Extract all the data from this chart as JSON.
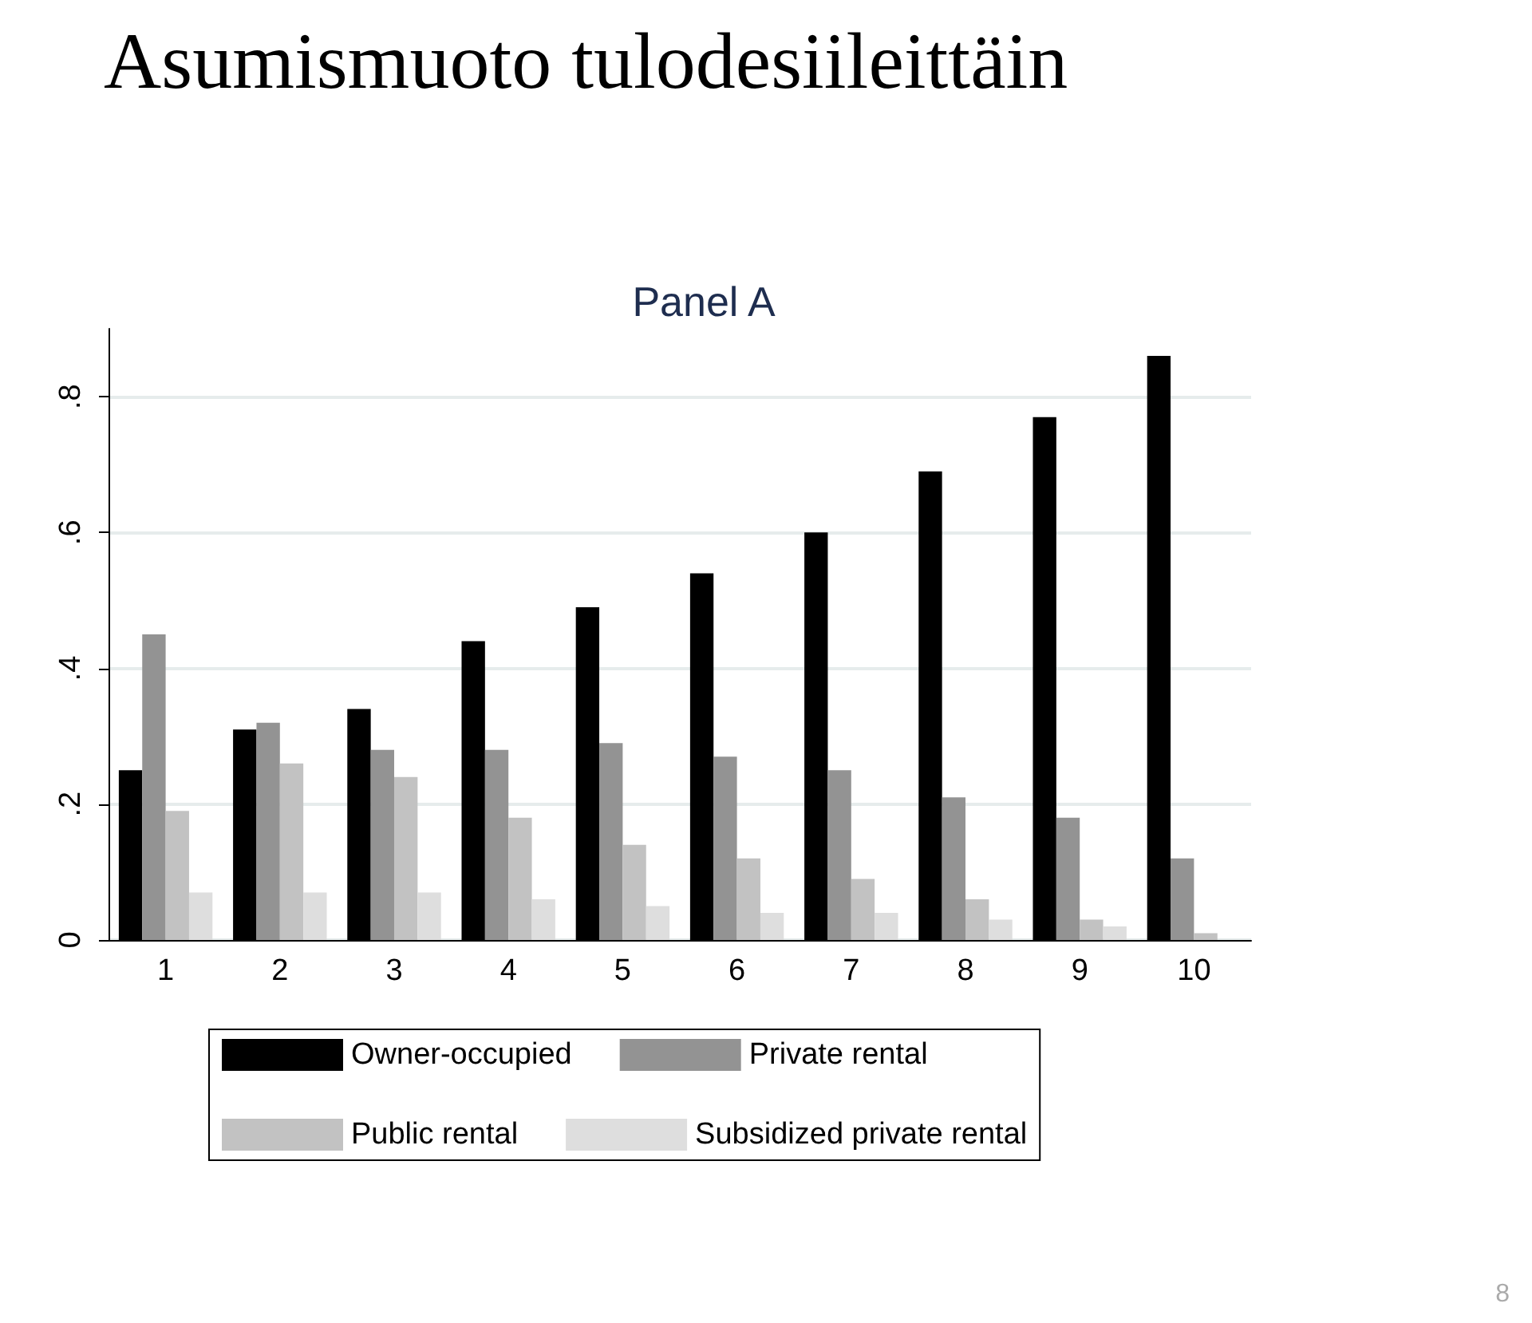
{
  "chart_data": {
    "type": "bar",
    "title": "Asumismuoto tulodesiileittäin",
    "subtitle": "Panel A",
    "categories": [
      "1",
      "2",
      "3",
      "4",
      "5",
      "6",
      "7",
      "8",
      "9",
      "10"
    ],
    "series": [
      {
        "name": "Owner-occupied",
        "color": "#000000",
        "values": [
          0.25,
          0.31,
          0.34,
          0.44,
          0.49,
          0.54,
          0.6,
          0.69,
          0.77,
          0.86
        ]
      },
      {
        "name": "Private rental",
        "color": "#939393",
        "values": [
          0.45,
          0.32,
          0.28,
          0.28,
          0.29,
          0.27,
          0.25,
          0.21,
          0.18,
          0.12
        ]
      },
      {
        "name": "Public rental",
        "color": "#c2c2c2",
        "values": [
          0.19,
          0.26,
          0.24,
          0.18,
          0.14,
          0.12,
          0.09,
          0.06,
          0.03,
          0.01
        ]
      },
      {
        "name": "Subsidized private rental",
        "color": "#dedede",
        "values": [
          0.07,
          0.07,
          0.07,
          0.06,
          0.05,
          0.04,
          0.04,
          0.03,
          0.02,
          0.0
        ]
      }
    ],
    "ylim": [
      0,
      0.9
    ],
    "yticks": [
      0,
      {
        "value": 0.2,
        "label": ".2"
      },
      {
        "value": 0.4,
        "label": ".4"
      },
      {
        "value": 0.6,
        "label": ".6"
      },
      {
        "value": 0.8,
        "label": ".8"
      }
    ],
    "grid": "y",
    "legend": "bottom",
    "annotations": [
      "8"
    ]
  }
}
